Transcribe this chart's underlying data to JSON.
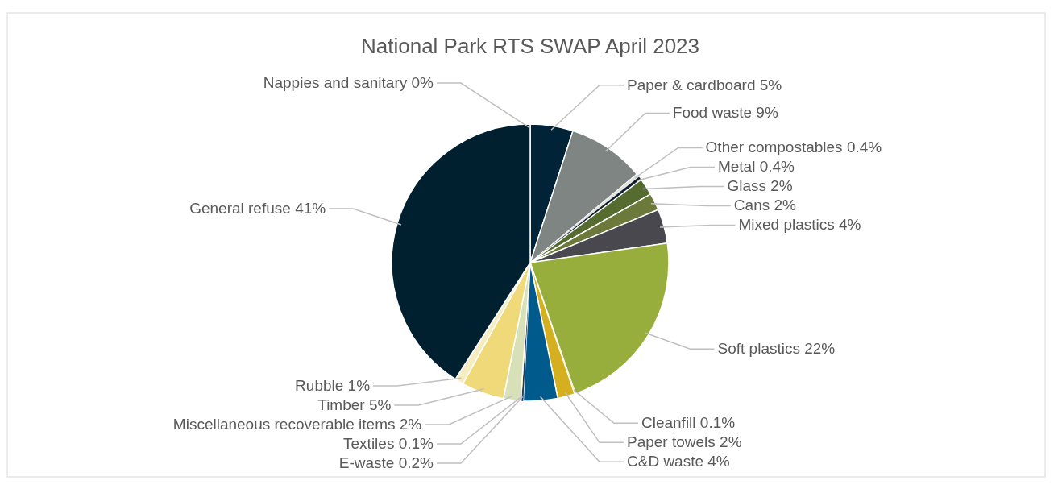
{
  "chart_data": {
    "type": "pie",
    "title": "National Park RTS SWAP April 2023",
    "categories": [
      "Paper & cardboard",
      "Food waste",
      "Other compostables",
      "Metal",
      "Glass",
      "Cans",
      "Mixed plastics",
      "Soft plastics",
      "Cleanfill",
      "Paper towels",
      "C&D waste",
      "E-waste",
      "Textiles",
      "Miscellaneous recoverable items",
      "Timber",
      "Rubble",
      "General refuse",
      "Nappies and sanitary"
    ],
    "values": [
      5,
      9,
      0.4,
      0.4,
      2,
      2,
      4,
      22,
      0.1,
      2,
      4,
      0.2,
      0.1,
      2,
      5,
      1,
      41,
      0
    ],
    "value_labels": [
      "5%",
      "9%",
      "0.4%",
      "0.4%",
      "2%",
      "2%",
      "4%",
      "22%",
      "0.1%",
      "2%",
      "4%",
      "0.2%",
      "0.1%",
      "2%",
      "5%",
      "1%",
      "41%",
      "0%"
    ],
    "colors": [
      "#002338",
      "#7f8583",
      "#e4e4e4",
      "#0f1e28",
      "#556b2f",
      "#6b7a3a",
      "#48484e",
      "#97ad3c",
      "#f0d060",
      "#d4b020",
      "#005a8c",
      "#1d3f5e",
      "#c8d0a0",
      "#d8e0b8",
      "#efd978",
      "#f5ecc0",
      "#00202f",
      "#c0c0c0"
    ]
  }
}
